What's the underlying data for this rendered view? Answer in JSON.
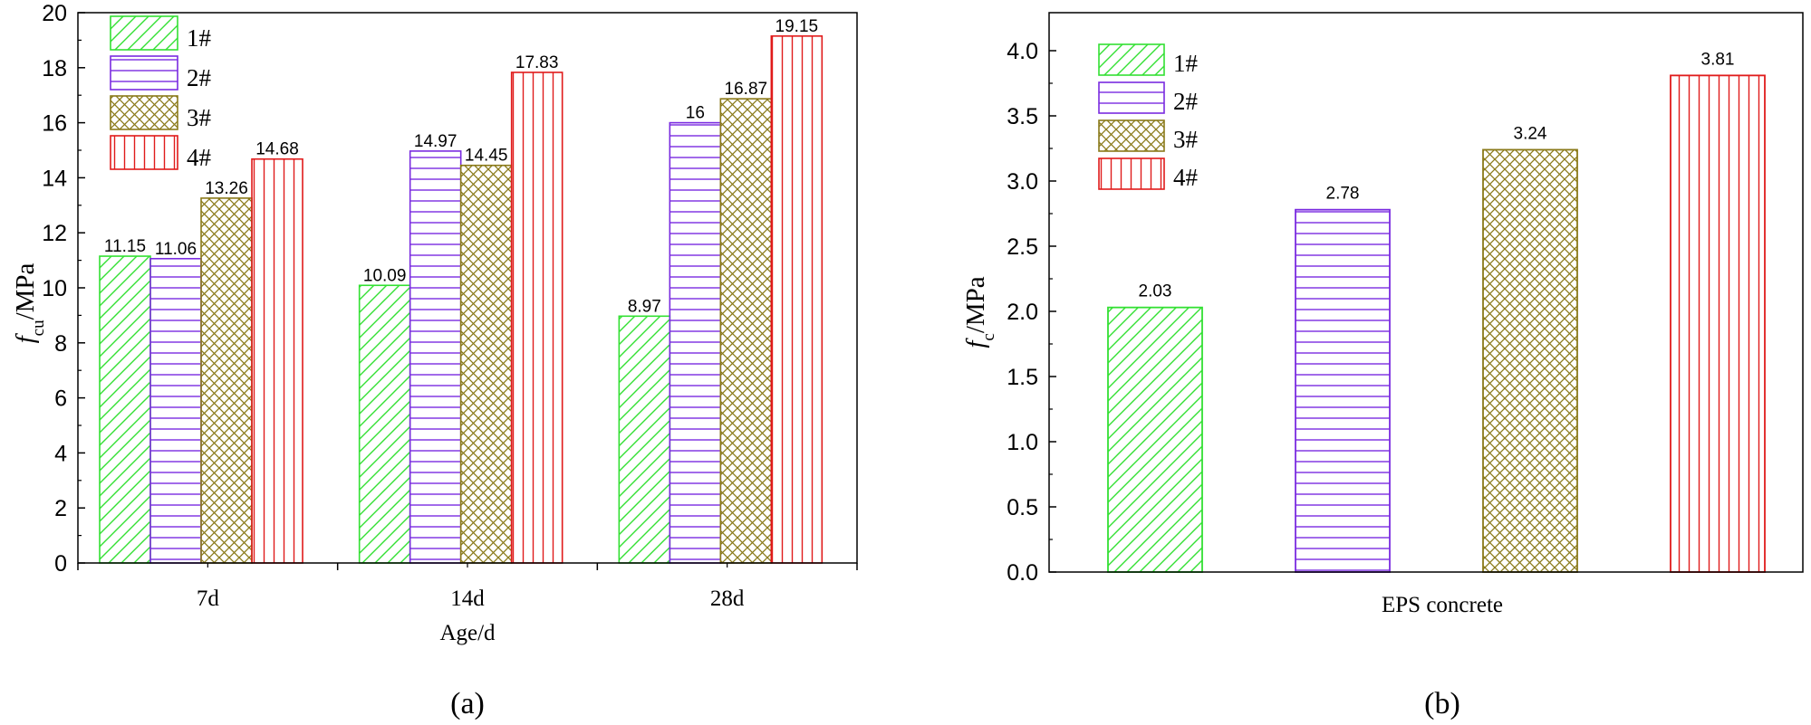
{
  "chart_data": [
    {
      "panel": "(a)",
      "type": "bar",
      "categories": [
        "7d",
        "14d",
        "28d"
      ],
      "series": [
        {
          "name": "1#",
          "values": [
            11.15,
            10.09,
            8.97
          ],
          "color": "#33e033",
          "pattern": "diagonal"
        },
        {
          "name": "2#",
          "values": [
            11.06,
            14.97,
            16
          ],
          "color": "#7a2be0",
          "pattern": "horizontal"
        },
        {
          "name": "3#",
          "values": [
            13.26,
            14.45,
            16.87
          ],
          "color": "#8a7a1a",
          "pattern": "crosshatch"
        },
        {
          "name": "4#",
          "values": [
            14.68,
            17.83,
            19.15
          ],
          "color": "#e01b1b",
          "pattern": "vertical"
        }
      ],
      "data_labels": [
        [
          "11.15",
          "10.09",
          "8.97"
        ],
        [
          "11.06",
          "14.97",
          "16"
        ],
        [
          "13.26",
          "14.45",
          "16.87"
        ],
        [
          "14.68",
          "17.83",
          "19.15"
        ]
      ],
      "xlabel": "Age/d",
      "ylabel_base": "f",
      "ylabel_sub": "cu",
      "ylabel_unit": "/MPa",
      "ylim": [
        0,
        20
      ],
      "yticks": [
        "0",
        "2",
        "4",
        "6",
        "8",
        "10",
        "12",
        "14",
        "16",
        "18",
        "20"
      ],
      "legend_position": "top-left",
      "grid": false
    },
    {
      "panel": "(b)",
      "type": "bar",
      "categories": [
        "EPS concrete"
      ],
      "series": [
        {
          "name": "1#",
          "values": [
            2.03
          ],
          "color": "#33e033",
          "pattern": "diagonal"
        },
        {
          "name": "2#",
          "values": [
            2.78
          ],
          "color": "#7a2be0",
          "pattern": "horizontal"
        },
        {
          "name": "3#",
          "values": [
            3.24
          ],
          "color": "#8a7a1a",
          "pattern": "crosshatch"
        },
        {
          "name": "4#",
          "values": [
            3.81
          ],
          "color": "#e01b1b",
          "pattern": "vertical"
        }
      ],
      "data_labels": [
        [
          "2.03"
        ],
        [
          "2.78"
        ],
        [
          "3.24"
        ],
        [
          "3.81"
        ]
      ],
      "xlabel": "",
      "ylabel_base": "f",
      "ylabel_sub": "c",
      "ylabel_unit": "/MPa",
      "ylim": [
        0,
        4
      ],
      "yticks": [
        "0.0",
        "0.5",
        "1.0",
        "1.5",
        "2.0",
        "2.5",
        "3.0",
        "3.5",
        "4.0"
      ],
      "legend_position": "top-left",
      "grid": false
    }
  ],
  "panel_labels": {
    "a": "(a)",
    "b": "(b)"
  }
}
